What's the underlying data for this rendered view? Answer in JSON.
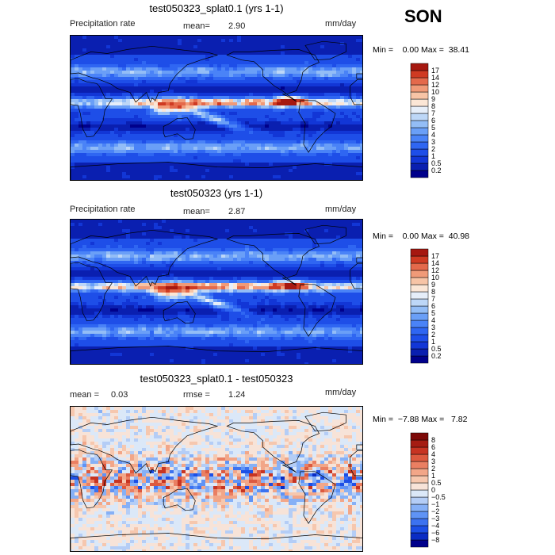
{
  "season": "SON",
  "chart_data": [
    {
      "type": "heatmap",
      "title": "test050323_splat0.1 (yrs 1-1)",
      "variable": "Precipitation rate",
      "mean_label": "mean=",
      "mean_value": "2.90",
      "units": "mm/day",
      "min_label": "Min =",
      "min_value": "0.00",
      "max_label": "Max =",
      "max_value": "38.41",
      "levels": [
        "0.2",
        "0.5",
        "1",
        "2",
        "3",
        "4",
        "5",
        "6",
        "7",
        "8",
        "9",
        "10",
        "12",
        "14",
        "17"
      ],
      "colors": [
        "#00008b",
        "#0a1fb0",
        "#1236d6",
        "#1e4ee8",
        "#2f66f2",
        "#4a83f7",
        "#6a9ff7",
        "#93bdf6",
        "#bdd7f7",
        "#e6eef9",
        "#fbe6d6",
        "#f7c4a6",
        "#f09a78",
        "#e4694b",
        "#cf3a22",
        "#a61810"
      ]
    },
    {
      "type": "heatmap",
      "title": "test050323 (yrs 1-1)",
      "variable": "Precipitation rate",
      "mean_label": "mean=",
      "mean_value": "2.87",
      "units": "mm/day",
      "min_label": "Min =",
      "min_value": "0.00",
      "max_label": "Max =",
      "max_value": "40.98",
      "levels": [
        "0.2",
        "0.5",
        "1",
        "2",
        "3",
        "4",
        "5",
        "6",
        "7",
        "8",
        "9",
        "10",
        "12",
        "14",
        "17"
      ],
      "colors": [
        "#00008b",
        "#0a1fb0",
        "#1236d6",
        "#1e4ee8",
        "#2f66f2",
        "#4a83f7",
        "#6a9ff7",
        "#93bdf6",
        "#bdd7f7",
        "#e6eef9",
        "#fbe6d6",
        "#f7c4a6",
        "#f09a78",
        "#e4694b",
        "#cf3a22",
        "#a61810"
      ]
    },
    {
      "type": "heatmap",
      "title": "test050323_splat0.1 - test050323",
      "mean_label": "mean =",
      "mean_value": "0.03",
      "rmse_label": "rmse =",
      "rmse_value": "1.24",
      "units": "mm/day",
      "min_label": "Min =",
      "min_value": "−7.88",
      "max_label": "Max =",
      "max_value": "7.82",
      "levels": [
        "−8",
        "−6",
        "−4",
        "−3",
        "−2",
        "−1",
        "−0.5",
        "0",
        "0.5",
        "1",
        "2",
        "3",
        "4",
        "6",
        "8"
      ],
      "colors": [
        "#00008b",
        "#0a2cc4",
        "#1c4fe6",
        "#3c72f0",
        "#5f93f5",
        "#86b0f6",
        "#b4cdf6",
        "#dbe8f8",
        "#f7e3d8",
        "#f6c7ae",
        "#f2a688",
        "#ea7f62",
        "#dd5a3f",
        "#c73422",
        "#a51c12",
        "#7d0a08"
      ]
    }
  ]
}
